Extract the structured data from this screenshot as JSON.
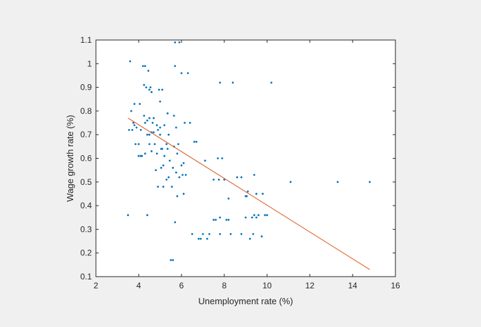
{
  "chart_data": {
    "type": "scatter",
    "xlabel": "Unemployment rate (%)",
    "ylabel": "Wage growth rate (%)",
    "xlim": [
      2,
      16
    ],
    "ylim": [
      0.1,
      1.1
    ],
    "x_ticks": [
      "2",
      "4",
      "6",
      "8",
      "10",
      "12",
      "14",
      "16"
    ],
    "y_ticks": [
      "0.1",
      "0.2",
      "0.3",
      "0.4",
      "0.5",
      "0.6",
      "0.7",
      "0.8",
      "0.9",
      "1",
      "1.1"
    ],
    "grid": false,
    "colors": {
      "figure_background": "#f0f0f0",
      "axes_background": "#ffffff",
      "axis": "#262626",
      "points": "#0072bd",
      "fit_line": "#d95319"
    },
    "series": [
      {
        "type": "scatter",
        "points": [
          [
            3.5,
            0.36
          ],
          [
            3.6,
            1.01
          ],
          [
            3.55,
            0.72
          ],
          [
            3.65,
            0.8
          ],
          [
            3.7,
            0.72
          ],
          [
            3.75,
            0.75
          ],
          [
            3.8,
            0.74
          ],
          [
            3.8,
            0.83
          ],
          [
            3.85,
            0.66
          ],
          [
            3.9,
            0.73
          ],
          [
            4.0,
            0.66
          ],
          [
            4.0,
            0.61
          ],
          [
            4.05,
            0.83
          ],
          [
            4.1,
            0.61
          ],
          [
            4.1,
            0.72
          ],
          [
            4.15,
            0.61
          ],
          [
            4.2,
            0.99
          ],
          [
            4.25,
            0.91
          ],
          [
            4.25,
            0.78
          ],
          [
            4.3,
            0.75
          ],
          [
            4.3,
            0.62
          ],
          [
            4.3,
            0.99
          ],
          [
            4.35,
            0.9
          ],
          [
            4.4,
            0.7
          ],
          [
            4.4,
            0.76
          ],
          [
            4.4,
            0.36
          ],
          [
            4.45,
            0.97
          ],
          [
            4.5,
            0.66
          ],
          [
            4.5,
            0.89
          ],
          [
            4.5,
            0.77
          ],
          [
            4.5,
            0.7
          ],
          [
            4.55,
            0.9
          ],
          [
            4.6,
            0.63
          ],
          [
            4.6,
            0.71
          ],
          [
            4.6,
            0.88
          ],
          [
            4.65,
            0.75
          ],
          [
            4.7,
            0.77
          ],
          [
            4.7,
            0.71
          ],
          [
            4.75,
            0.66
          ],
          [
            4.8,
            0.55
          ],
          [
            4.85,
            0.74
          ],
          [
            4.85,
            0.62
          ],
          [
            4.9,
            0.72
          ],
          [
            4.9,
            0.48
          ],
          [
            4.95,
            0.89
          ],
          [
            5.0,
            0.73
          ],
          [
            5.0,
            0.7
          ],
          [
            5.0,
            0.84
          ],
          [
            5.05,
            0.64
          ],
          [
            5.05,
            0.56
          ],
          [
            5.1,
            0.89
          ],
          [
            5.1,
            0.64
          ],
          [
            5.15,
            0.48
          ],
          [
            5.15,
            0.57
          ],
          [
            5.2,
            0.74
          ],
          [
            5.2,
            0.61
          ],
          [
            5.3,
            0.66
          ],
          [
            5.3,
            0.51
          ],
          [
            5.35,
            0.64
          ],
          [
            5.35,
            0.79
          ],
          [
            5.4,
            0.52
          ],
          [
            5.4,
            0.7
          ],
          [
            5.45,
            0.59
          ],
          [
            5.5,
            0.17
          ],
          [
            5.55,
            0.48
          ],
          [
            5.6,
            0.56
          ],
          [
            5.6,
            0.17
          ],
          [
            5.65,
            0.78
          ],
          [
            5.65,
            0.65
          ],
          [
            5.7,
            0.99
          ],
          [
            5.7,
            1.09
          ],
          [
            5.7,
            0.33
          ],
          [
            5.75,
            0.73
          ],
          [
            5.75,
            0.54
          ],
          [
            5.8,
            0.62
          ],
          [
            5.8,
            0.44
          ],
          [
            5.85,
            0.66
          ],
          [
            5.9,
            1.09
          ],
          [
            5.9,
            0.52
          ],
          [
            6.0,
            0.96
          ],
          [
            6.0,
            0.57
          ],
          [
            6.05,
            0.53
          ],
          [
            6.1,
            0.58
          ],
          [
            6.1,
            0.45
          ],
          [
            6.15,
            0.75
          ],
          [
            6.2,
            0.53
          ],
          [
            6.3,
            0.96
          ],
          [
            6.4,
            0.75
          ],
          [
            6.5,
            0.28
          ],
          [
            6.6,
            0.67
          ],
          [
            6.7,
            0.67
          ],
          [
            6.8,
            0.26
          ],
          [
            6.9,
            0.26
          ],
          [
            7.0,
            0.28
          ],
          [
            7.1,
            0.59
          ],
          [
            7.2,
            0.26
          ],
          [
            7.3,
            0.28
          ],
          [
            7.5,
            0.34
          ],
          [
            7.5,
            0.51
          ],
          [
            7.6,
            0.34
          ],
          [
            7.7,
            0.6
          ],
          [
            7.75,
            0.51
          ],
          [
            7.8,
            0.92
          ],
          [
            7.8,
            0.35
          ],
          [
            7.8,
            0.28
          ],
          [
            7.9,
            0.6
          ],
          [
            8.0,
            0.51
          ],
          [
            8.1,
            0.34
          ],
          [
            8.2,
            0.34
          ],
          [
            8.2,
            0.43
          ],
          [
            8.3,
            0.28
          ],
          [
            8.4,
            0.92
          ],
          [
            8.6,
            0.52
          ],
          [
            8.8,
            0.28
          ],
          [
            8.8,
            0.52
          ],
          [
            9.0,
            0.44
          ],
          [
            9.0,
            0.35
          ],
          [
            9.05,
            0.44
          ],
          [
            9.1,
            0.46
          ],
          [
            9.2,
            0.26
          ],
          [
            9.3,
            0.35
          ],
          [
            9.35,
            0.28
          ],
          [
            9.4,
            0.53
          ],
          [
            9.4,
            0.36
          ],
          [
            9.5,
            0.45
          ],
          [
            9.5,
            0.35
          ],
          [
            9.6,
            0.36
          ],
          [
            9.8,
            0.45
          ],
          [
            9.9,
            0.36
          ],
          [
            10.0,
            0.36
          ],
          [
            9.75,
            0.27
          ],
          [
            10.2,
            0.92
          ],
          [
            11.1,
            0.5
          ],
          [
            13.3,
            0.5
          ],
          [
            14.8,
            0.5
          ]
        ]
      },
      {
        "type": "line",
        "points": [
          [
            3.5,
            0.77
          ],
          [
            14.8,
            0.13
          ]
        ]
      }
    ]
  }
}
